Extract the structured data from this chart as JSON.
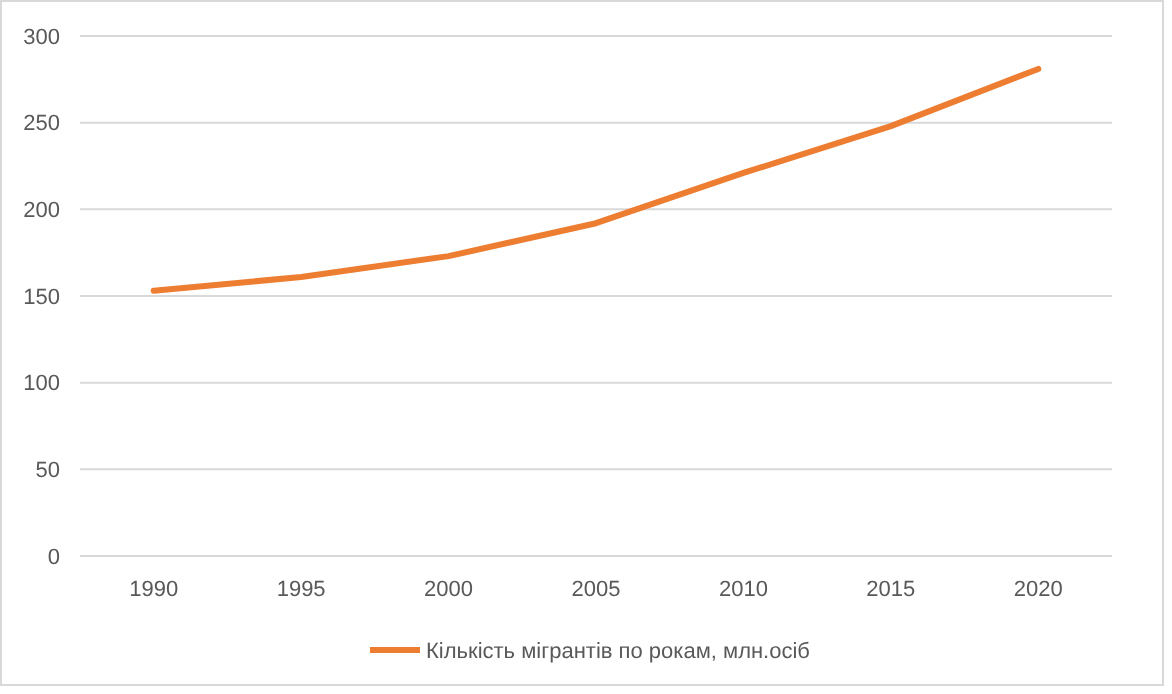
{
  "chart_data": {
    "type": "line",
    "categories": [
      "1990",
      "1995",
      "2000",
      "2005",
      "2010",
      "2015",
      "2020"
    ],
    "series": [
      {
        "name": "Кількість мігрантів по рокам, млн.осіб",
        "color": "#ed7d31",
        "values": [
          153,
          161,
          173,
          192,
          221,
          248,
          281
        ]
      }
    ],
    "ylim": [
      0,
      300
    ],
    "yticks": [
      0,
      50,
      100,
      150,
      200,
      250,
      300
    ],
    "grid": "y",
    "legend": "bottom",
    "marker": "none",
    "line_style": "solid"
  }
}
